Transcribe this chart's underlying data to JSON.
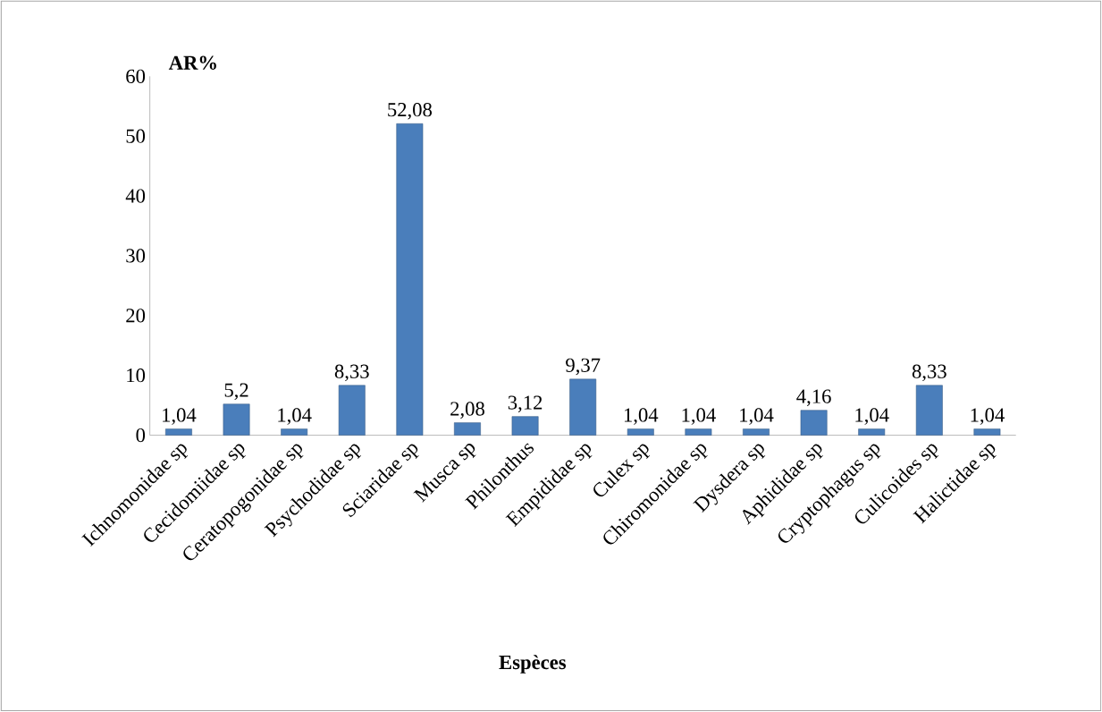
{
  "chart_data": {
    "type": "bar",
    "ylabel": "AR%",
    "xlabel": "Espèces",
    "categories": [
      "Ichnomonidae sp",
      "Cecidomiidae sp",
      "Ceratopogonidae sp",
      "Psychodidae sp",
      "Sciaridae sp",
      "Musca sp",
      "Philonthus",
      "Empididae sp",
      "Culex sp",
      "Chiromonidae sp",
      "Dysdera sp",
      "Aphididae sp",
      "Cryptophagus sp",
      "Culicoides sp",
      "Halictidae sp"
    ],
    "values": [
      1.04,
      5.2,
      1.04,
      8.33,
      52.08,
      2.08,
      3.12,
      9.37,
      1.04,
      1.04,
      1.04,
      4.16,
      1.04,
      8.33,
      1.04
    ],
    "value_labels": [
      "1,04",
      "5,2",
      "1,04",
      "8,33",
      "52,08",
      "2,08",
      "3,12",
      "9,37",
      "1,04",
      "1,04",
      "1,04",
      "4,16",
      "1,04",
      "8,33",
      "1,04"
    ],
    "color": "#4a7ebb",
    "ylim": [
      0,
      60
    ],
    "yticks": [
      0,
      10,
      20,
      30,
      40,
      50,
      60
    ],
    "grid": false
  }
}
